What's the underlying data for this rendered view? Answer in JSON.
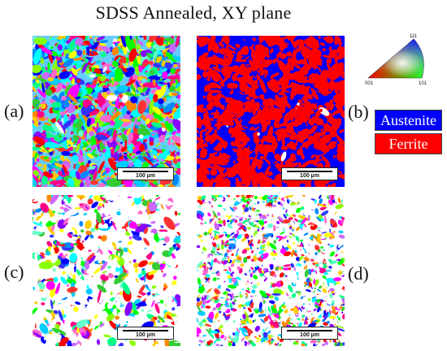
{
  "title": "SDSS Annealed, XY plane",
  "panel_labels": {
    "a": "(a)",
    "b": "(b)",
    "c": "(c)",
    "d": "(d)"
  },
  "scalebar": "100 µm",
  "phase_legend": [
    {
      "label": "Austenite",
      "color": "#0000ff"
    },
    {
      "label": "Ferrite",
      "color": "#ff0000"
    }
  ],
  "ipf_key": {
    "top": "111",
    "left": "001",
    "right": "101"
  },
  "panels": {
    "a": {
      "content": "ipf-orientation-map"
    },
    "b": {
      "content": "phase-map"
    },
    "c": {
      "content": "ipf-orientation-map-partial"
    },
    "d": {
      "content": "ipf-orientation-map-partial"
    }
  }
}
